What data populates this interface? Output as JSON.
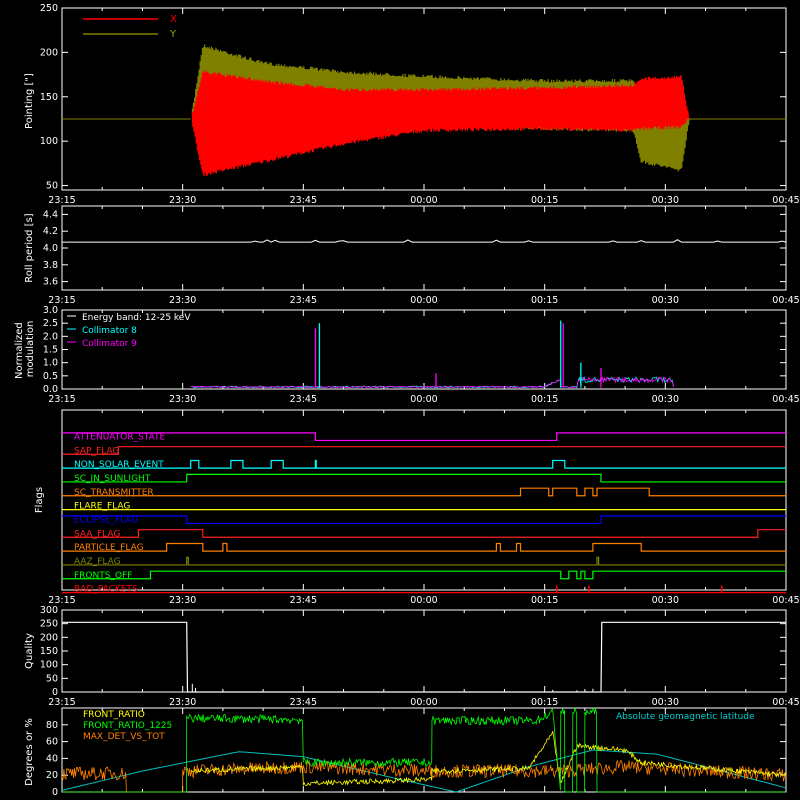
{
  "time_ticks": [
    "23:15",
    "23:30",
    "23:45",
    "00:00",
    "00:15",
    "00:30",
    "00:45"
  ],
  "chart_data": [
    {
      "type": "line",
      "id": "pointing",
      "ylabel": "Pointing [\"]",
      "ylim": [
        45,
        250
      ],
      "yticks": [
        50,
        100,
        150,
        200,
        250
      ],
      "legend_placement": "top-left",
      "x_unit": "minutes since 23:15",
      "series": [
        {
          "name": "X",
          "color": "#ff0000",
          "envelope": [
            [
              16,
              125,
              125
            ],
            [
              17.5,
              60,
              180
            ],
            [
              25,
              75,
              170
            ],
            [
              35,
              95,
              160
            ],
            [
              45,
              110,
              160
            ],
            [
              60,
              112,
              162
            ],
            [
              71,
              110,
              165
            ],
            [
              72,
              112,
              172
            ],
            [
              77,
              114,
              175
            ],
            [
              78,
              125,
              125
            ],
            [
              90,
              125,
              125
            ]
          ]
        },
        {
          "name": "Y",
          "color": "#808000",
          "envelope": [
            [
              16,
              125,
              125
            ],
            [
              17.5,
              85,
              210
            ],
            [
              25,
              105,
              190
            ],
            [
              35,
              115,
              180
            ],
            [
              45,
              115,
              175
            ],
            [
              60,
              112,
              170
            ],
            [
              71,
              110,
              170
            ],
            [
              72,
              75,
              150
            ],
            [
              77,
              65,
              140
            ],
            [
              78,
              125,
              125
            ],
            [
              90,
              125,
              125
            ]
          ]
        }
      ],
      "baseline": 125
    },
    {
      "type": "line",
      "id": "roll",
      "ylabel": "Roll period [s]",
      "ylim": [
        3.5,
        4.5
      ],
      "yticks": [
        3.6,
        3.8,
        4.0,
        4.2,
        4.4
      ],
      "series": [
        {
          "name": "",
          "color": "#ffffff",
          "level": 4.07
        }
      ]
    },
    {
      "type": "line",
      "id": "modulation",
      "ylabel": "Normalized modulation",
      "ylim": [
        0,
        3.0
      ],
      "yticks": [
        "0.0",
        "0.5",
        "1.0",
        "1.5",
        "2.0",
        "2.5",
        "3.0"
      ],
      "legend_placement": "top-left",
      "series": [
        {
          "name": "Energy band: 12-25 keV",
          "color": "#ffffff"
        },
        {
          "name": "Collimator 8",
          "color": "#00ffff"
        },
        {
          "name": "Collimator 9",
          "color": "#ff00ff"
        }
      ],
      "spikes": [
        [
          31.5,
          2.3
        ],
        [
          32.0,
          2.5
        ],
        [
          46.5,
          0.6
        ],
        [
          62.0,
          2.6
        ],
        [
          62.3,
          2.5
        ],
        [
          64.5,
          1.0
        ],
        [
          67.0,
          0.8
        ]
      ]
    },
    {
      "type": "line",
      "id": "flags",
      "ylabel": "Flags",
      "flags": [
        {
          "label": "ATTENUATOR_STATE",
          "color": "#ff00ff",
          "steps": [
            [
              0,
              1
            ],
            [
              31.5,
              0
            ],
            [
              61.5,
              1
            ]
          ]
        },
        {
          "label": "SAP_FLAG",
          "color": "#ff2020",
          "steps": [
            [
              0,
              0
            ],
            [
              7,
              1
            ],
            [
              15.5,
              1
            ]
          ]
        },
        {
          "label": "NON_SOLAR_EVENT",
          "color": "#00ffff",
          "steps": [
            [
              0,
              0
            ],
            [
              15.5,
              0
            ],
            [
              16,
              1
            ],
            [
              17,
              0
            ],
            [
              21,
              1
            ],
            [
              22.5,
              0
            ],
            [
              26,
              1
            ],
            [
              27.5,
              0
            ],
            [
              31.5,
              1
            ],
            [
              31.6,
              0
            ],
            [
              61,
              1
            ],
            [
              62.5,
              0
            ]
          ]
        },
        {
          "label": "SC_IN_SUNLIGHT",
          "color": "#00ff00",
          "steps": [
            [
              0,
              0
            ],
            [
              15.5,
              1
            ],
            [
              67,
              0
            ]
          ]
        },
        {
          "label": "SC_TRANSMITTER",
          "color": "#ff8000",
          "steps": [
            [
              0,
              0
            ],
            [
              57,
              1
            ],
            [
              60.5,
              0
            ],
            [
              61,
              1
            ],
            [
              64,
              0
            ],
            [
              65,
              1
            ],
            [
              66,
              0
            ],
            [
              66.5,
              1
            ],
            [
              73,
              0
            ]
          ]
        },
        {
          "label": "FLARE_FLAG",
          "color": "#ffff00",
          "steps": [
            [
              0,
              0
            ]
          ]
        },
        {
          "label": "ECLIPSE_FLAG",
          "color": "#0000ff",
          "steps": [
            [
              0,
              1
            ],
            [
              15.5,
              0
            ],
            [
              67,
              1
            ]
          ]
        },
        {
          "label": "SAA_FLAG",
          "color": "#ff2020",
          "steps": [
            [
              0,
              0
            ],
            [
              9.5,
              1
            ],
            [
              17.5,
              0
            ],
            [
              86.5,
              1
            ]
          ]
        },
        {
          "label": "PARTICLE_FLAG",
          "color": "#ff8000",
          "steps": [
            [
              0,
              0
            ],
            [
              13,
              1
            ],
            [
              17.5,
              0
            ],
            [
              20,
              1
            ],
            [
              20.5,
              0
            ],
            [
              54,
              1
            ],
            [
              54.5,
              0
            ],
            [
              56.5,
              1
            ],
            [
              57,
              0
            ],
            [
              66,
              1
            ],
            [
              72,
              0
            ]
          ]
        },
        {
          "label": "AAZ_FLAG",
          "color": "#808000",
          "steps": [
            [
              0,
              0
            ],
            [
              15.5,
              1
            ],
            [
              15.7,
              0
            ],
            [
              66.5,
              1
            ],
            [
              66.7,
              0
            ]
          ]
        },
        {
          "label": "FRONTS_OFF",
          "color": "#00ff00",
          "steps": [
            [
              0,
              0
            ],
            [
              11,
              1
            ],
            [
              62,
              0
            ],
            [
              63,
              1
            ],
            [
              64,
              0
            ],
            [
              64.5,
              1
            ],
            [
              65,
              0
            ],
            [
              66,
              1
            ]
          ]
        },
        {
          "label": "BAD_PACKETS",
          "color": "#ff0000",
          "steps": [
            [
              0,
              0
            ]
          ],
          "ticks": [
            61.5,
            65.5,
            82
          ]
        }
      ]
    },
    {
      "type": "line",
      "id": "quality",
      "ylabel": "Quality",
      "ylim": [
        0,
        300
      ],
      "yticks": [
        0,
        50,
        100,
        150,
        200,
        250,
        300
      ],
      "series": [
        {
          "name": "",
          "color": "#ffffff",
          "steps": [
            [
              0,
              255
            ],
            [
              15.5,
              255
            ],
            [
              15.6,
              0
            ],
            [
              67,
              0
            ],
            [
              67.1,
              255
            ],
            [
              90,
              255
            ]
          ]
        }
      ]
    },
    {
      "type": "line",
      "id": "ratios",
      "ylabel": "Degrees or %",
      "ylim": [
        0,
        100
      ],
      "yticks": [
        0,
        20,
        40,
        60,
        80
      ],
      "series": [
        {
          "name": "FRONT_RATIO",
          "color": "#ffff00"
        },
        {
          "name": "FRONT_RATIO_1225",
          "color": "#00ff00"
        },
        {
          "name": "MAX_DET_VS_TOT",
          "color": "#ff8000"
        },
        {
          "name": "Absolute geomagnetic latitude",
          "color": "#00c0c0"
        }
      ],
      "front_ratio_1225": [
        [
          0,
          0
        ],
        [
          15.5,
          0
        ],
        [
          15.5,
          88
        ],
        [
          30,
          86
        ],
        [
          30,
          35
        ],
        [
          46,
          35
        ],
        [
          46,
          85
        ],
        [
          59,
          85
        ],
        [
          61,
          95
        ],
        [
          62,
          0
        ],
        [
          62,
          95
        ],
        [
          62.5,
          95
        ],
        [
          62.5,
          0
        ],
        [
          63.5,
          0
        ],
        [
          63.5,
          95
        ],
        [
          64,
          95
        ],
        [
          64,
          0
        ],
        [
          65,
          0
        ],
        [
          65,
          95
        ],
        [
          66.5,
          95
        ],
        [
          66.5,
          0
        ],
        [
          90,
          0
        ]
      ],
      "front_ratio": [
        [
          16,
          25
        ],
        [
          30,
          30
        ],
        [
          30,
          10
        ],
        [
          46,
          15
        ],
        [
          46,
          25
        ],
        [
          58,
          28
        ],
        [
          61,
          70
        ],
        [
          62,
          10
        ],
        [
          64,
          55
        ],
        [
          70,
          50
        ],
        [
          72,
          35
        ],
        [
          90,
          20
        ]
      ],
      "max_det": [
        [
          0,
          22
        ],
        [
          8,
          22
        ],
        [
          8,
          0
        ],
        [
          15,
          0
        ],
        [
          15,
          25
        ],
        [
          30,
          30
        ],
        [
          46,
          25
        ],
        [
          62,
          25
        ],
        [
          70,
          30
        ],
        [
          90,
          20
        ]
      ],
      "latitude": [
        [
          0,
          2
        ],
        [
          10,
          25
        ],
        [
          22,
          48
        ],
        [
          30,
          42
        ],
        [
          42,
          15
        ],
        [
          49,
          0
        ],
        [
          58,
          30
        ],
        [
          66,
          50
        ],
        [
          74,
          45
        ],
        [
          82,
          25
        ],
        [
          90,
          5
        ]
      ]
    }
  ]
}
